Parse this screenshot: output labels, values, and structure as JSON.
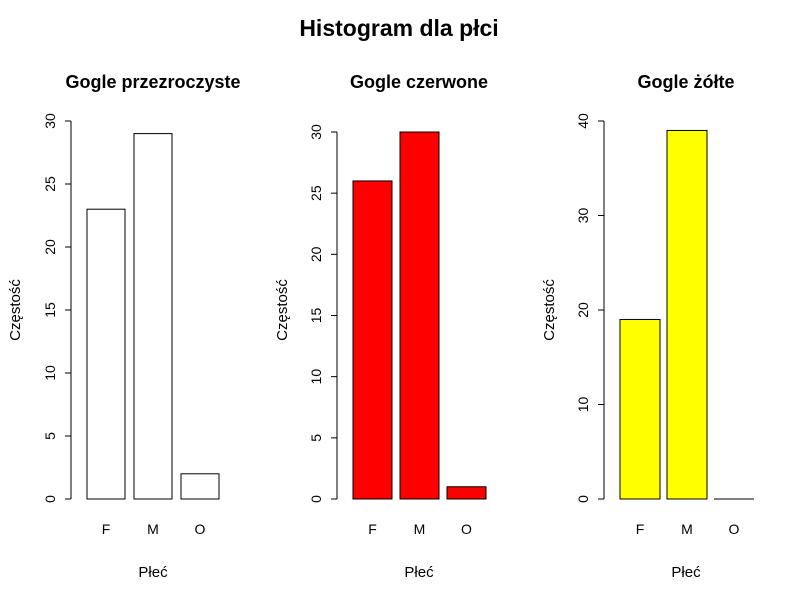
{
  "figure": {
    "title": "Histogram dla płci"
  },
  "chart_data": [
    {
      "type": "bar",
      "title": "Gogle przezroczyste",
      "xlabel": "Płeć",
      "ylabel": "Częstość",
      "categories": [
        "F",
        "M",
        "O"
      ],
      "values": [
        23,
        29,
        2
      ],
      "ylim": [
        0,
        30
      ],
      "yticks": [
        0,
        5,
        10,
        15,
        20,
        25,
        30
      ],
      "bar_color": "#ffffff",
      "grid": false
    },
    {
      "type": "bar",
      "title": "Gogle czerwone",
      "xlabel": "Płeć",
      "ylabel": "Częstość",
      "categories": [
        "F",
        "M",
        "O"
      ],
      "values": [
        26,
        30,
        1
      ],
      "ylim": [
        0,
        30
      ],
      "yticks": [
        0,
        5,
        10,
        15,
        20,
        25,
        30
      ],
      "bar_color": "#ff0000",
      "grid": false
    },
    {
      "type": "bar",
      "title": "Gogle żółte",
      "xlabel": "Płeć",
      "ylabel": "Częstość",
      "categories": [
        "F",
        "M",
        "O"
      ],
      "values": [
        19,
        39,
        0
      ],
      "ylim": [
        0,
        40
      ],
      "yticks": [
        0,
        10,
        20,
        30,
        40
      ],
      "bar_color": "#ffff00",
      "grid": false
    }
  ]
}
